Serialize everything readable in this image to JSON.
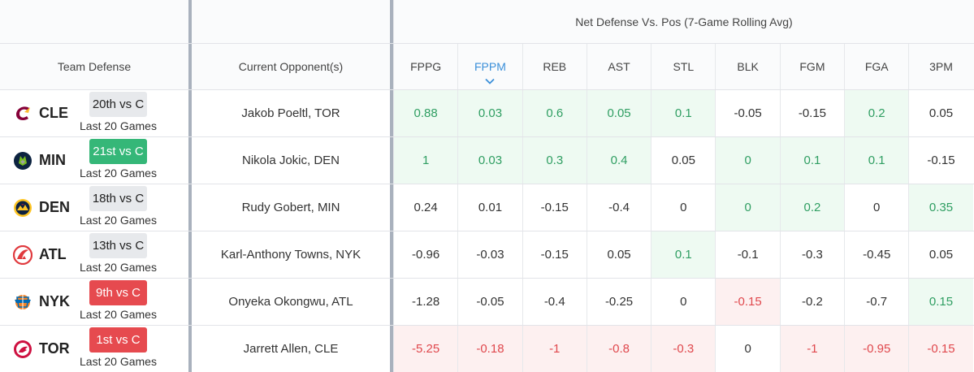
{
  "header": {
    "super_title": "Net Defense Vs. Pos (7-Game Rolling Avg)",
    "team_defense": "Team Defense",
    "current_opponent": "Current Opponent(s)",
    "stat_columns": [
      "FPPG",
      "FPPM",
      "REB",
      "AST",
      "STL",
      "BLK",
      "FGM",
      "FGA",
      "3PM"
    ],
    "sorted_column": "FPPM"
  },
  "colors": {
    "positive_bg": "#eefaf2",
    "positive_text": "#2f9e62",
    "negative_bg": "#fdf0f0",
    "negative_text": "#e0484d",
    "rank_good": "#35b778",
    "rank_bad": "#e64a4f"
  },
  "rows": [
    {
      "team": "CLE",
      "logo": "cavaliers-logo-icon",
      "rank": "20th vs C",
      "rank_tone": "neutral",
      "sample": "Last 20 Games",
      "opponent": "Jakob Poeltl, TOR",
      "stats": [
        "0.88",
        "0.03",
        "0.6",
        "0.05",
        "0.1",
        "-0.05",
        "-0.15",
        "0.2",
        "0.05"
      ],
      "tones": [
        "pos",
        "pos",
        "pos",
        "pos",
        "pos",
        "",
        "",
        "pos",
        ""
      ]
    },
    {
      "team": "MIN",
      "logo": "timberwolves-logo-icon",
      "rank": "21st vs C",
      "rank_tone": "good",
      "sample": "Last 20 Games",
      "opponent": "Nikola Jokic, DEN",
      "stats": [
        "1",
        "0.03",
        "0.3",
        "0.4",
        "0.05",
        "0",
        "0.1",
        "0.1",
        "-0.15"
      ],
      "tones": [
        "pos",
        "pos",
        "pos",
        "pos",
        "",
        "pos",
        "pos",
        "pos",
        ""
      ]
    },
    {
      "team": "DEN",
      "logo": "nuggets-logo-icon",
      "rank": "18th vs C",
      "rank_tone": "neutral",
      "sample": "Last 20 Games",
      "opponent": "Rudy Gobert, MIN",
      "stats": [
        "0.24",
        "0.01",
        "-0.15",
        "-0.4",
        "0",
        "0",
        "0.2",
        "0",
        "0.35"
      ],
      "tones": [
        "",
        "",
        "",
        "",
        "",
        "pos",
        "pos",
        "",
        "pos"
      ]
    },
    {
      "team": "ATL",
      "logo": "hawks-logo-icon",
      "rank": "13th vs C",
      "rank_tone": "neutral",
      "sample": "Last 20 Games",
      "opponent": "Karl-Anthony Towns, NYK",
      "stats": [
        "-0.96",
        "-0.03",
        "-0.15",
        "0.05",
        "0.1",
        "-0.1",
        "-0.3",
        "-0.45",
        "0.05"
      ],
      "tones": [
        "",
        "",
        "",
        "",
        "pos",
        "",
        "",
        "",
        ""
      ]
    },
    {
      "team": "NYK",
      "logo": "knicks-logo-icon",
      "rank": "9th vs C",
      "rank_tone": "bad",
      "sample": "Last 20 Games",
      "opponent": "Onyeka Okongwu, ATL",
      "stats": [
        "-1.28",
        "-0.05",
        "-0.4",
        "-0.25",
        "0",
        "-0.15",
        "-0.2",
        "-0.7",
        "0.15"
      ],
      "tones": [
        "",
        "",
        "",
        "",
        "",
        "neg",
        "",
        "",
        "pos"
      ]
    },
    {
      "team": "TOR",
      "logo": "raptors-logo-icon",
      "rank": "1st vs C",
      "rank_tone": "bad",
      "sample": "Last 20 Games",
      "opponent": "Jarrett Allen, CLE",
      "stats": [
        "-5.25",
        "-0.18",
        "-1",
        "-0.8",
        "-0.3",
        "0",
        "-1",
        "-0.95",
        "-0.15"
      ],
      "tones": [
        "neg",
        "neg",
        "neg",
        "neg",
        "neg",
        "",
        "neg",
        "neg",
        "neg"
      ]
    }
  ]
}
